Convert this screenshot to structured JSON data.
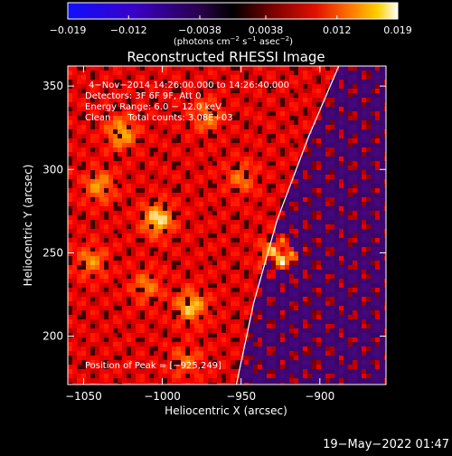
{
  "chart_data": {
    "type": "heatmap",
    "title": "Reconstructed RHESSI Image",
    "xlabel": "Heliocentric X (arcsec)",
    "ylabel": "Heliocentric Y (arcsec)",
    "xlim": [
      -1060,
      -858
    ],
    "ylim": [
      171,
      362
    ],
    "x_ticks": [
      -1050,
      -1000,
      -950,
      -900
    ],
    "x_tick_labels": [
      "−1050",
      "−1000",
      "−950",
      "−900"
    ],
    "y_ticks": [
      200,
      250,
      300,
      350
    ],
    "y_tick_labels": [
      "200",
      "250",
      "300",
      "350"
    ],
    "colorbar": {
      "colormap": "hot-with-blue-negatives",
      "ticks": [
        -0.019,
        -0.012,
        -0.0038,
        0.0038,
        0.012,
        0.019
      ],
      "tick_labels": [
        "−0.019",
        "−0.012",
        "−0.0038",
        "0.0038",
        "0.012",
        "0.019"
      ],
      "range": [
        -0.019,
        0.019
      ],
      "units_label": "(photons cm",
      "units_exp1": "−2",
      "units_mid": " s",
      "units_exp2": "−1",
      "units_end": " asec",
      "units_exp3": "−2",
      "units_close": ")"
    },
    "annotations": [
      "4−Nov−2014 14:26:00.000 to 14:26:40.000",
      "Detectors: 3F 6F 9F, Att 0",
      "Energy Range: 6.0 − 12.0 keV",
      "Clean      Total counts: 3.08E+03"
    ],
    "peak_label": "Position of Peak = [−925,249]",
    "peak": {
      "x": -925,
      "y": 249
    },
    "sources": [
      {
        "x": -925,
        "y": 249,
        "intensity": 1.0
      },
      {
        "x": -1003,
        "y": 270,
        "intensity": 0.62
      },
      {
        "x": -982,
        "y": 218,
        "intensity": 0.55
      },
      {
        "x": -1026,
        "y": 322,
        "intensity": 0.5
      },
      {
        "x": -972,
        "y": 332,
        "intensity": 0.35
      },
      {
        "x": -1040,
        "y": 290,
        "intensity": 0.42
      },
      {
        "x": -1045,
        "y": 245,
        "intensity": 0.38
      },
      {
        "x": -950,
        "y": 295,
        "intensity": 0.32
      },
      {
        "x": -1010,
        "y": 230,
        "intensity": 0.34
      },
      {
        "x": -985,
        "y": 185,
        "intensity": 0.3
      }
    ],
    "limb_curve": [
      [
        -953,
        171
      ],
      [
        -942,
        220
      ],
      [
        -927,
        270
      ],
      [
        -907,
        320
      ],
      [
        -888,
        362
      ]
    ],
    "background_colors": {
      "hot": "#ff0000",
      "negative": "#330066"
    }
  },
  "timestamp": "19−May−2022 01:47"
}
